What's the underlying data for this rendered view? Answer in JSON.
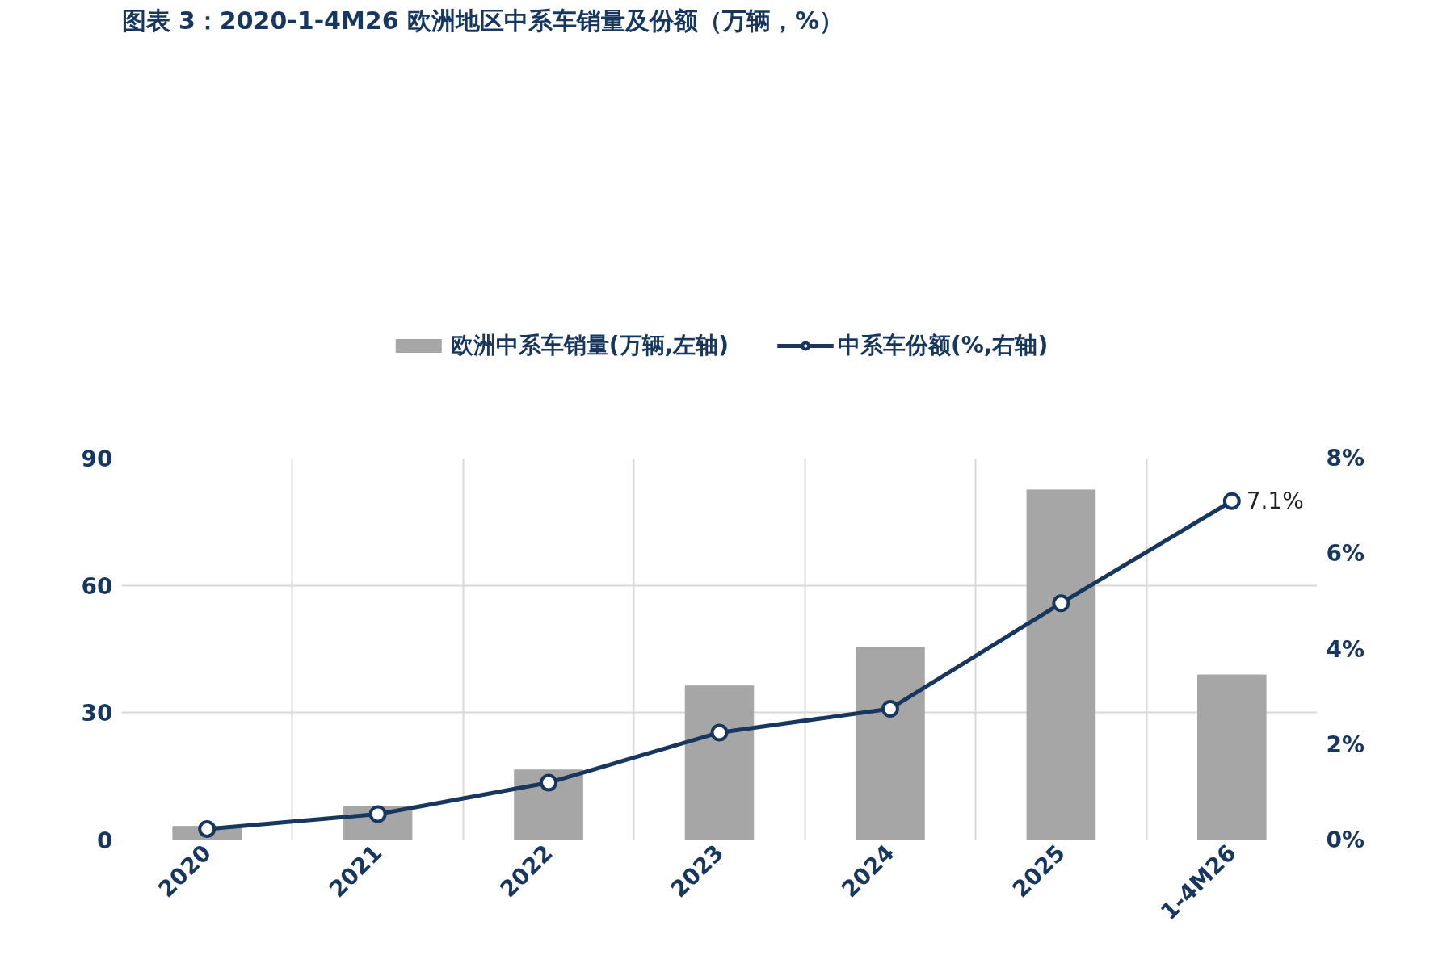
{
  "chart_data": {
    "type": "bar",
    "title": "图表 3：2020-1-4M26 欧洲地区中系车销量及份额（万辆，%）",
    "categories": [
      "2020",
      "2021",
      "2022",
      "2023",
      "2024",
      "2025",
      "1-4M26"
    ],
    "series": [
      {
        "name": "欧洲中系车销量(万辆,左轴)",
        "color": "#a6a6a6",
        "values": [
          3.2,
          7.8,
          16.5,
          36.3,
          45.4,
          82.5,
          38.9
        ]
      },
      {
        "name": "中系车份额(%,右轴)",
        "type": "line",
        "axis": "y2",
        "color": "#17375e",
        "marker": "circle",
        "values": [
          0.23,
          0.54,
          1.2,
          2.25,
          2.75,
          4.96,
          7.1
        ],
        "value_labels": [
          null,
          null,
          null,
          null,
          null,
          null,
          "7.1%"
        ]
      }
    ],
    "ylim": [
      0,
      90
    ],
    "yticks": [
      0,
      30,
      60,
      90
    ],
    "y2lim": [
      0,
      8
    ],
    "y2ticks": [
      {
        "value": 0,
        "label": "0%"
      },
      {
        "value": 2,
        "label": "2%"
      },
      {
        "value": 4,
        "label": "4%"
      },
      {
        "value": 6,
        "label": "6%"
      },
      {
        "value": 8,
        "label": "8%"
      }
    ],
    "grid": true,
    "legend": "top"
  }
}
